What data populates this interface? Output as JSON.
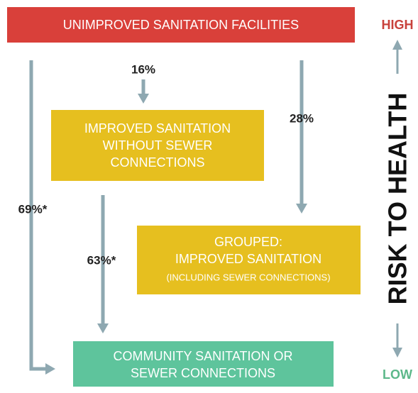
{
  "boxes": [
    {
      "lines": [
        "UNIMPROVED SANITATION FACILITIES"
      ]
    },
    {
      "lines": [
        "IMPROVED SANITATION",
        "WITHOUT SEWER",
        "CONNECTIONS"
      ]
    },
    {
      "lines": [
        "GROUPED:",
        "IMPROVED SANITATION"
      ],
      "note": "(INCLUDING SEWER CONNECTIONS)"
    },
    {
      "lines": [
        "COMMUNITY SANITATION OR",
        "SEWER CONNECTIONS"
      ]
    }
  ],
  "arrows": [
    {
      "label": "16%"
    },
    {
      "label": "28%"
    },
    {
      "label": "69%*"
    },
    {
      "label": "63%*"
    }
  ],
  "scale": {
    "title": "RISK TO HEALTH",
    "high": "HIGH",
    "low": "LOW"
  }
}
